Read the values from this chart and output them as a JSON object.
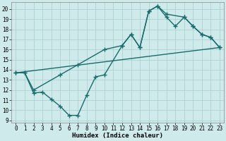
{
  "bg_color": "#ceeaea",
  "grid_color": "#aacccc",
  "line_color": "#1a6b6b",
  "line_width": 1.0,
  "marker": "+",
  "marker_size": 4,
  "marker_edge_width": 1.0,
  "xlabel": "Humidex (Indice chaleur)",
  "xlabel_fontsize": 6.5,
  "tick_fontsize": 5.5,
  "xlim": [
    -0.5,
    23.5
  ],
  "ylim": [
    8.8,
    20.7
  ],
  "xticks": [
    0,
    1,
    2,
    3,
    4,
    5,
    6,
    7,
    8,
    9,
    10,
    11,
    12,
    13,
    14,
    15,
    16,
    17,
    18,
    19,
    20,
    21,
    22,
    23
  ],
  "yticks": [
    9,
    10,
    11,
    12,
    13,
    14,
    15,
    16,
    17,
    18,
    19,
    20
  ],
  "line1_x": [
    0,
    23
  ],
  "line1_y": [
    13.7,
    16.2
  ],
  "line2_x": [
    0,
    1,
    2,
    3,
    4,
    5,
    6,
    7,
    8,
    9,
    10,
    12,
    13,
    14,
    15,
    16,
    17,
    19,
    20,
    21,
    22,
    23
  ],
  "line2_y": [
    13.7,
    13.7,
    11.7,
    11.8,
    11.1,
    10.4,
    9.5,
    9.5,
    11.5,
    13.3,
    13.5,
    16.4,
    17.5,
    16.2,
    19.8,
    20.3,
    19.5,
    19.2,
    18.3,
    17.5,
    17.2,
    16.2
  ],
  "line3_x": [
    0,
    1,
    2,
    5,
    7,
    10,
    12,
    13,
    14,
    15,
    16,
    17,
    18,
    19,
    20,
    21,
    22,
    23
  ],
  "line3_y": [
    13.7,
    13.7,
    12.0,
    13.5,
    14.5,
    16.0,
    16.4,
    17.5,
    16.2,
    19.8,
    20.3,
    19.2,
    18.3,
    19.2,
    18.3,
    17.5,
    17.2,
    16.2
  ]
}
